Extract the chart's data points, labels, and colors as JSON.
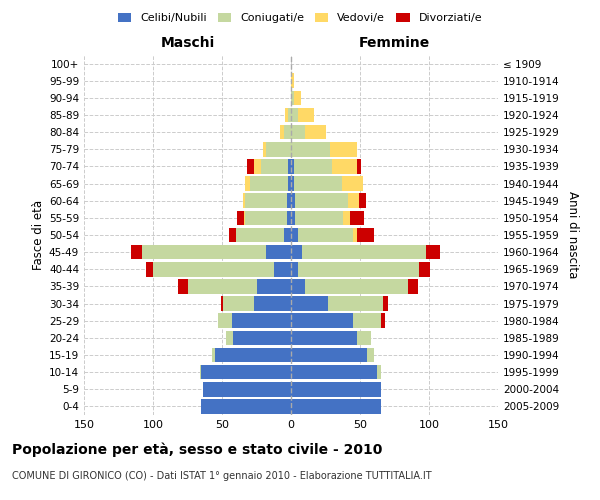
{
  "age_groups": [
    "0-4",
    "5-9",
    "10-14",
    "15-19",
    "20-24",
    "25-29",
    "30-34",
    "35-39",
    "40-44",
    "45-49",
    "50-54",
    "55-59",
    "60-64",
    "65-69",
    "70-74",
    "75-79",
    "80-84",
    "85-89",
    "90-94",
    "95-99",
    "100+"
  ],
  "birth_years": [
    "2005-2009",
    "2000-2004",
    "1995-1999",
    "1990-1994",
    "1985-1989",
    "1980-1984",
    "1975-1979",
    "1970-1974",
    "1965-1969",
    "1960-1964",
    "1955-1959",
    "1950-1954",
    "1945-1949",
    "1940-1944",
    "1935-1939",
    "1930-1934",
    "1925-1929",
    "1920-1924",
    "1915-1919",
    "1910-1914",
    "≤ 1909"
  ],
  "males": {
    "celibi": [
      65,
      64,
      65,
      55,
      42,
      43,
      27,
      25,
      12,
      18,
      5,
      3,
      3,
      2,
      2,
      0,
      0,
      0,
      0,
      0,
      0
    ],
    "coniugati": [
      0,
      0,
      1,
      2,
      5,
      10,
      22,
      50,
      88,
      90,
      35,
      30,
      30,
      28,
      20,
      18,
      5,
      2,
      0,
      0,
      0
    ],
    "vedovi": [
      0,
      0,
      0,
      0,
      0,
      0,
      0,
      0,
      0,
      0,
      0,
      1,
      2,
      3,
      5,
      2,
      3,
      2,
      0,
      0,
      0
    ],
    "divorziati": [
      0,
      0,
      0,
      0,
      0,
      0,
      2,
      7,
      5,
      8,
      5,
      5,
      0,
      0,
      5,
      0,
      0,
      0,
      0,
      0,
      0
    ]
  },
  "females": {
    "nubili": [
      65,
      65,
      62,
      55,
      48,
      45,
      27,
      10,
      5,
      8,
      5,
      3,
      3,
      2,
      2,
      0,
      0,
      0,
      0,
      0,
      0
    ],
    "coniugate": [
      0,
      0,
      3,
      5,
      10,
      20,
      40,
      75,
      88,
      90,
      40,
      35,
      38,
      35,
      28,
      28,
      10,
      5,
      2,
      0,
      0
    ],
    "vedove": [
      0,
      0,
      0,
      0,
      0,
      0,
      0,
      0,
      0,
      0,
      3,
      5,
      8,
      15,
      18,
      20,
      15,
      12,
      5,
      2,
      0
    ],
    "divorziate": [
      0,
      0,
      0,
      0,
      0,
      3,
      3,
      7,
      8,
      10,
      12,
      10,
      5,
      0,
      3,
      0,
      0,
      0,
      0,
      0,
      0
    ]
  },
  "colors": {
    "celibi": "#4472C4",
    "coniugati": "#C5D8A0",
    "vedovi": "#FFD966",
    "divorziati": "#CC0000"
  },
  "xlim": 150,
  "title": "Popolazione per età, sesso e stato civile - 2010",
  "subtitle": "COMUNE DI GIRONICO (CO) - Dati ISTAT 1° gennaio 2010 - Elaborazione TUTTITALIA.IT",
  "xlabel_left": "Maschi",
  "xlabel_right": "Femmine",
  "ylabel_left": "Fasce di età",
  "ylabel_right": "Anni di nascita",
  "bg_color": "#ffffff",
  "grid_color": "#cccccc"
}
